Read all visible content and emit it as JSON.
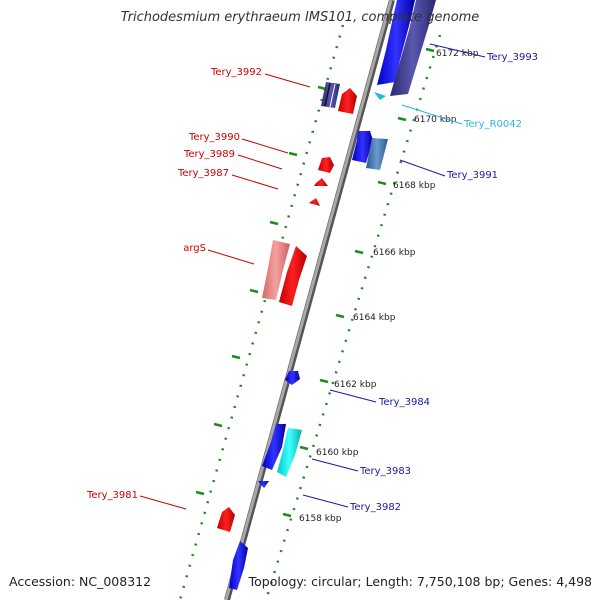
{
  "title": "Trichodesmium erythraeum IMS101, complete genome",
  "footer": {
    "accession": "Accession: NC_008312",
    "topology": "Topology: circular; Length: 7,750,108 bp; Genes: 4,498"
  },
  "ticks": [
    {
      "label": "6172 kbp",
      "kbp": 6172
    },
    {
      "label": "6170 kbp",
      "kbp": 6170
    },
    {
      "label": "6168 kbp",
      "kbp": 6168
    },
    {
      "label": "6166 kbp",
      "kbp": 6166
    },
    {
      "label": "6164 kbp",
      "kbp": 6164
    },
    {
      "label": "6162 kbp",
      "kbp": 6162
    },
    {
      "label": "6160 kbp",
      "kbp": 6160
    },
    {
      "label": "6158 kbp",
      "kbp": 6158
    }
  ],
  "gene_labels": [
    {
      "name": "Tery_3993",
      "side": "right",
      "color": "#1a1aa8"
    },
    {
      "name": "Tery_R0042",
      "side": "right",
      "color": "#2bb5e0"
    },
    {
      "name": "Tery_3991",
      "side": "right",
      "color": "#1a1aa8"
    },
    {
      "name": "Tery_3984",
      "side": "right",
      "color": "#1a1aa8"
    },
    {
      "name": "Tery_3983",
      "side": "right",
      "color": "#1a1aa8"
    },
    {
      "name": "Tery_3982",
      "side": "right",
      "color": "#1a1aa8"
    },
    {
      "name": "Tery_3992",
      "side": "left",
      "color": "#cc0000"
    },
    {
      "name": "Tery_3990",
      "side": "left",
      "color": "#cc0000"
    },
    {
      "name": "Tery_3989",
      "side": "left",
      "color": "#cc0000"
    },
    {
      "name": "Tery_3987",
      "side": "left",
      "color": "#cc0000"
    },
    {
      "name": "argS",
      "side": "left",
      "color": "#cc0000"
    },
    {
      "name": "Tery_3981",
      "side": "left",
      "color": "#cc0000"
    }
  ],
  "colors": {
    "backbone": "#8a8a8a",
    "tick_green": "#1f8a1f",
    "forward_blue": "#1010e0",
    "reverse_red": "#ee0000"
  }
}
